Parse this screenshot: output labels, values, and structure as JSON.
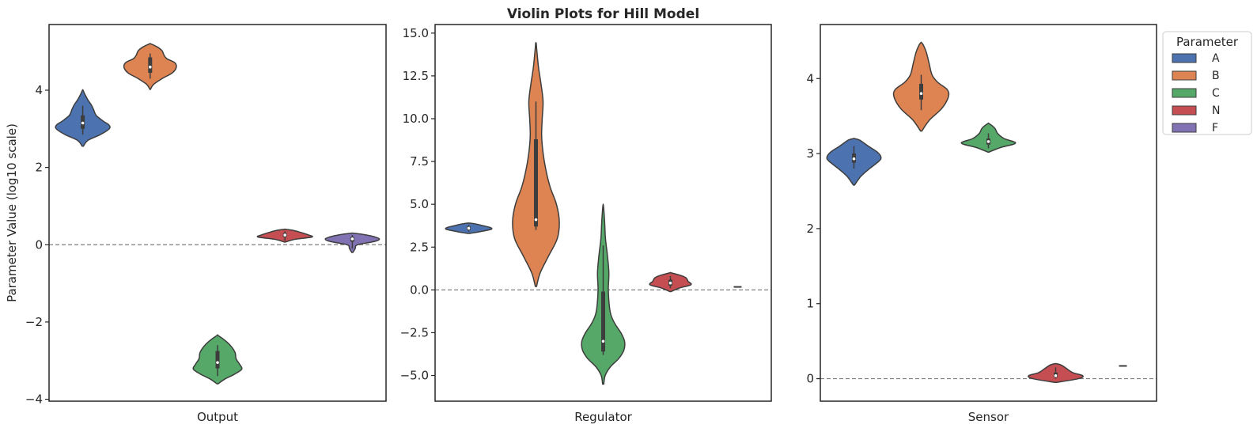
{
  "title": "Violin Plots for Hill Model",
  "legend": {
    "title": "Parameter",
    "placement": "upper-right-outside",
    "items": [
      {
        "label": "A",
        "color": "#4c72b0"
      },
      {
        "label": "B",
        "color": "#dd8452"
      },
      {
        "label": "C",
        "color": "#55a868"
      },
      {
        "label": "N",
        "color": "#c44e52"
      },
      {
        "label": "F",
        "color": "#8172b3"
      }
    ]
  },
  "chart_data": [
    {
      "type": "violin",
      "xlabel": "Output",
      "ylabel": "Parameter Value (log10 scale)",
      "ylim": [
        -4.05,
        5.7
      ],
      "yticks": [
        -4,
        -2,
        0,
        2,
        4
      ],
      "ytick_labels": [
        "−4",
        "−2",
        "0",
        "2",
        "4"
      ],
      "reference_line": 0,
      "violins": [
        {
          "param": "A",
          "min": 2.55,
          "max": 4.0,
          "median": 3.15,
          "q1": 3.0,
          "q3": 3.35,
          "wmin": 2.85,
          "wmax": 3.6,
          "profile": [
            [
              2.55,
              0.02
            ],
            [
              2.7,
              0.18
            ],
            [
              2.85,
              0.62
            ],
            [
              3.0,
              0.93
            ],
            [
              3.1,
              0.92
            ],
            [
              3.2,
              0.72
            ],
            [
              3.35,
              0.47
            ],
            [
              3.5,
              0.38
            ],
            [
              3.62,
              0.3
            ],
            [
              3.75,
              0.18
            ],
            [
              3.9,
              0.07
            ],
            [
              4.0,
              0.01
            ]
          ]
        },
        {
          "param": "B",
          "min": 4.02,
          "max": 5.2,
          "median": 4.6,
          "q1": 4.45,
          "q3": 4.85,
          "wmin": 4.3,
          "wmax": 4.95,
          "profile": [
            [
              4.02,
              0.01
            ],
            [
              4.15,
              0.12
            ],
            [
              4.3,
              0.42
            ],
            [
              4.45,
              0.78
            ],
            [
              4.6,
              0.92
            ],
            [
              4.72,
              0.85
            ],
            [
              4.82,
              0.58
            ],
            [
              4.92,
              0.48
            ],
            [
              5.02,
              0.42
            ],
            [
              5.12,
              0.25
            ],
            [
              5.2,
              0.02
            ]
          ]
        },
        {
          "param": "C",
          "min": -3.6,
          "max": -2.35,
          "median": -3.05,
          "q1": -3.2,
          "q3": -2.75,
          "wmin": -3.4,
          "wmax": -2.6,
          "profile": [
            [
              -3.6,
              0.02
            ],
            [
              -3.48,
              0.25
            ],
            [
              -3.35,
              0.6
            ],
            [
              -3.22,
              0.85
            ],
            [
              -3.1,
              0.78
            ],
            [
              -2.95,
              0.65
            ],
            [
              -2.8,
              0.62
            ],
            [
              -2.65,
              0.5
            ],
            [
              -2.5,
              0.3
            ],
            [
              -2.35,
              0.02
            ]
          ]
        },
        {
          "param": "N",
          "min": 0.07,
          "max": 0.4,
          "median": 0.25,
          "q1": 0.2,
          "q3": 0.3,
          "wmin": 0.1,
          "wmax": 0.35,
          "profile": [
            [
              0.07,
              0.02
            ],
            [
              0.14,
              0.35
            ],
            [
              0.2,
              0.95
            ],
            [
              0.26,
              0.8
            ],
            [
              0.32,
              0.55
            ],
            [
              0.37,
              0.3
            ],
            [
              0.4,
              0.02
            ]
          ]
        },
        {
          "param": "F",
          "min": -0.2,
          "max": 0.3,
          "median": 0.15,
          "q1": 0.08,
          "q3": 0.2,
          "wmin": -0.1,
          "wmax": 0.25,
          "profile": [
            [
              -0.2,
              0.02
            ],
            [
              -0.1,
              0.1
            ],
            [
              0.0,
              0.18
            ],
            [
              0.08,
              0.75
            ],
            [
              0.15,
              0.95
            ],
            [
              0.22,
              0.7
            ],
            [
              0.27,
              0.35
            ],
            [
              0.3,
              0.02
            ]
          ]
        }
      ]
    },
    {
      "type": "violin",
      "xlabel": "Regulator",
      "ylabel": "",
      "ylim": [
        -6.5,
        15.5
      ],
      "yticks": [
        -5,
        -2.5,
        0,
        2.5,
        5,
        7.5,
        10,
        12.5,
        15
      ],
      "ytick_labels": [
        "−5.0",
        "−2.5",
        "0.0",
        "2.5",
        "5.0",
        "7.5",
        "10.0",
        "12.5",
        "15.0"
      ],
      "reference_line": 0,
      "violins": [
        {
          "param": "A",
          "min": 3.3,
          "max": 3.9,
          "median": 3.6,
          "q1": 3.5,
          "q3": 3.7,
          "wmin": 3.4,
          "wmax": 3.8,
          "profile": [
            [
              3.3,
              0.05
            ],
            [
              3.45,
              0.55
            ],
            [
              3.55,
              0.8
            ],
            [
              3.65,
              0.75
            ],
            [
              3.75,
              0.5
            ],
            [
              3.85,
              0.25
            ],
            [
              3.9,
              0.05
            ]
          ]
        },
        {
          "param": "B",
          "min": 0.2,
          "max": 14.4,
          "median": 4.1,
          "q1": 3.7,
          "q3": 8.8,
          "wmin": 3.5,
          "wmax": 11.0,
          "profile": [
            [
              0.2,
              0.02
            ],
            [
              1.0,
              0.15
            ],
            [
              2.0,
              0.45
            ],
            [
              3.0,
              0.75
            ],
            [
              4.0,
              0.82
            ],
            [
              5.0,
              0.72
            ],
            [
              6.0,
              0.5
            ],
            [
              7.0,
              0.35
            ],
            [
              8.0,
              0.25
            ],
            [
              9.0,
              0.2
            ],
            [
              10.0,
              0.22
            ],
            [
              11.0,
              0.25
            ],
            [
              12.0,
              0.18
            ],
            [
              13.0,
              0.09
            ],
            [
              14.0,
              0.03
            ],
            [
              14.4,
              0.01
            ]
          ]
        },
        {
          "param": "C",
          "min": -5.5,
          "max": 4.9,
          "median": -3.0,
          "q1": -3.6,
          "q3": -0.1,
          "wmin": -3.8,
          "wmax": 2.6,
          "profile": [
            [
              -5.5,
              0.02
            ],
            [
              -5.0,
              0.07
            ],
            [
              -4.5,
              0.25
            ],
            [
              -4.0,
              0.55
            ],
            [
              -3.5,
              0.73
            ],
            [
              -3.0,
              0.75
            ],
            [
              -2.5,
              0.62
            ],
            [
              -2.0,
              0.42
            ],
            [
              -1.5,
              0.28
            ],
            [
              -1.0,
              0.22
            ],
            [
              0.0,
              0.18
            ],
            [
              1.0,
              0.2
            ],
            [
              2.0,
              0.15
            ],
            [
              3.0,
              0.08
            ],
            [
              4.0,
              0.05
            ],
            [
              4.9,
              0.01
            ]
          ]
        },
        {
          "param": "N",
          "min": -0.1,
          "max": 1.0,
          "median": 0.4,
          "q1": 0.25,
          "q3": 0.6,
          "wmin": 0.1,
          "wmax": 0.8,
          "profile": [
            [
              -0.1,
              0.02
            ],
            [
              0.1,
              0.3
            ],
            [
              0.3,
              0.72
            ],
            [
              0.5,
              0.62
            ],
            [
              0.7,
              0.55
            ],
            [
              0.85,
              0.35
            ],
            [
              1.0,
              0.02
            ]
          ]
        },
        {
          "param": "F",
          "min": 0.15,
          "max": 0.2,
          "median": 0.17,
          "q1": 0.16,
          "q3": 0.18,
          "wmin": 0.15,
          "wmax": 0.2,
          "profile": [
            [
              0.15,
              0.12
            ],
            [
              0.2,
              0.12
            ]
          ]
        }
      ]
    },
    {
      "type": "violin",
      "xlabel": "Sensor",
      "ylabel": "",
      "ylim": [
        -0.3,
        4.72
      ],
      "yticks": [
        0,
        1,
        2,
        3,
        4
      ],
      "ytick_labels": [
        "0",
        "1",
        "2",
        "3",
        "4"
      ],
      "reference_line": 0,
      "violins": [
        {
          "param": "A",
          "min": 2.58,
          "max": 3.2,
          "median": 2.93,
          "q1": 2.88,
          "q3": 3.0,
          "wmin": 2.8,
          "wmax": 3.1,
          "profile": [
            [
              2.58,
              0.02
            ],
            [
              2.7,
              0.25
            ],
            [
              2.8,
              0.55
            ],
            [
              2.9,
              0.88
            ],
            [
              2.95,
              0.95
            ],
            [
              3.02,
              0.82
            ],
            [
              3.1,
              0.5
            ],
            [
              3.18,
              0.2
            ],
            [
              3.2,
              0.02
            ]
          ]
        },
        {
          "param": "B",
          "min": 3.3,
          "max": 4.48,
          "median": 3.8,
          "q1": 3.72,
          "q3": 3.93,
          "wmin": 3.58,
          "wmax": 4.05,
          "profile": [
            [
              3.3,
              0.02
            ],
            [
              3.45,
              0.3
            ],
            [
              3.6,
              0.72
            ],
            [
              3.75,
              0.95
            ],
            [
              3.85,
              0.92
            ],
            [
              3.95,
              0.58
            ],
            [
              4.05,
              0.38
            ],
            [
              4.2,
              0.28
            ],
            [
              4.35,
              0.18
            ],
            [
              4.45,
              0.07
            ],
            [
              4.48,
              0.01
            ]
          ]
        },
        {
          "param": "C",
          "min": 3.02,
          "max": 3.4,
          "median": 3.16,
          "q1": 3.12,
          "q3": 3.2,
          "wmin": 3.07,
          "wmax": 3.27,
          "profile": [
            [
              3.02,
              0.02
            ],
            [
              3.08,
              0.42
            ],
            [
              3.14,
              0.95
            ],
            [
              3.2,
              0.55
            ],
            [
              3.27,
              0.32
            ],
            [
              3.34,
              0.22
            ],
            [
              3.4,
              0.02
            ]
          ]
        },
        {
          "param": "N",
          "min": -0.05,
          "max": 0.2,
          "median": 0.04,
          "q1": 0.02,
          "q3": 0.08,
          "wmin": 0.0,
          "wmax": 0.15,
          "profile": [
            [
              -0.05,
              0.02
            ],
            [
              0.0,
              0.8
            ],
            [
              0.04,
              0.95
            ],
            [
              0.08,
              0.6
            ],
            [
              0.13,
              0.4
            ],
            [
              0.18,
              0.2
            ],
            [
              0.2,
              0.02
            ]
          ]
        },
        {
          "param": "F",
          "min": 0.16,
          "max": 0.18,
          "median": 0.17,
          "q1": 0.165,
          "q3": 0.175,
          "wmin": 0.16,
          "wmax": 0.18,
          "profile": [
            [
              0.16,
              0.12
            ],
            [
              0.18,
              0.12
            ]
          ]
        }
      ]
    }
  ]
}
